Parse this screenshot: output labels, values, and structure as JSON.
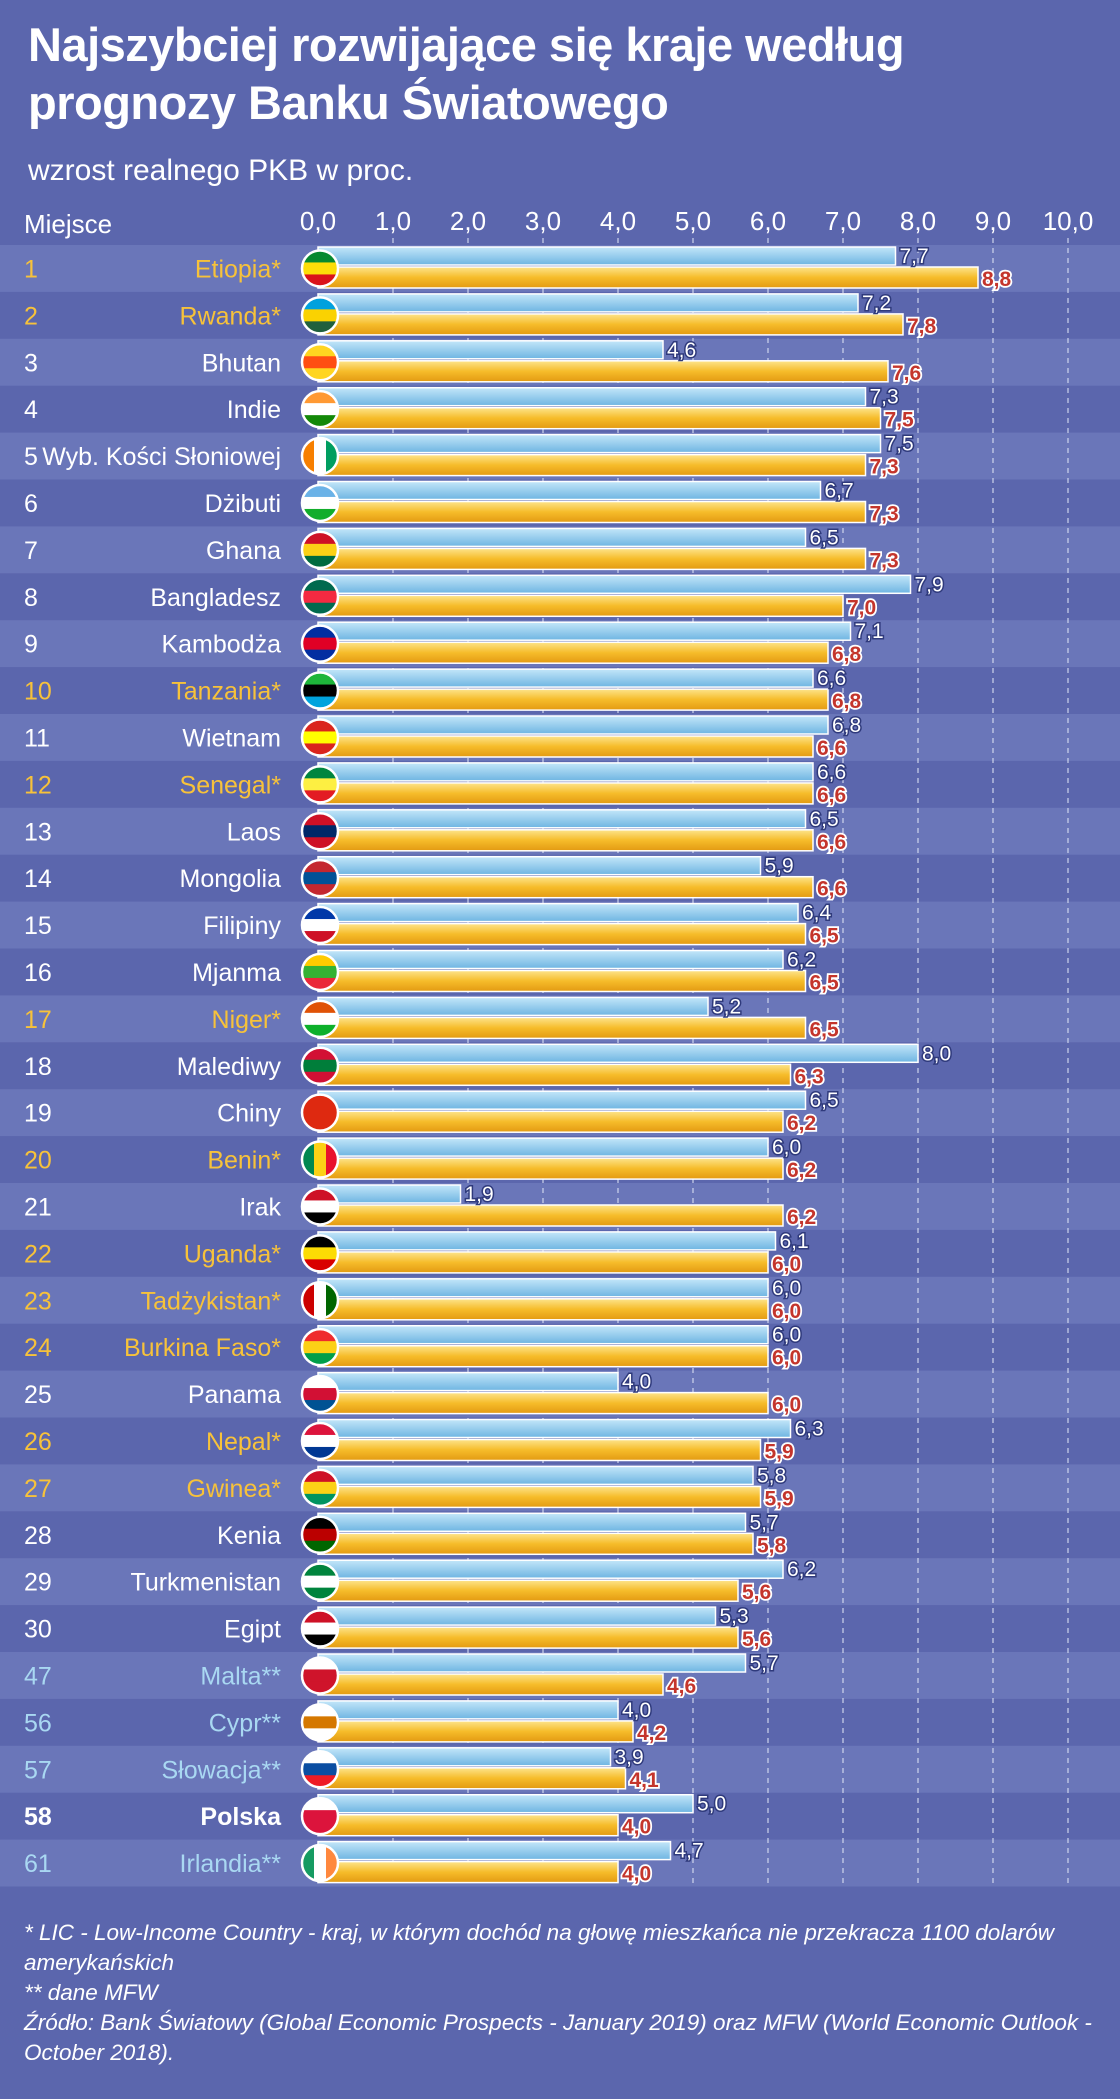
{
  "title": "Najszybciej rozwijające się kraje według prognozy Banku Światowego",
  "subtitle": "wzrost realnego PKB w proc.",
  "rank_header": "Miejsce",
  "colors": {
    "background": "#5b66ad",
    "row_band": "#6a76b9",
    "bar_2018": "#8ec9ec",
    "bar_2019": "#f3b319",
    "label_lic": "#f7c23a",
    "label_eu": "#a9d8f2",
    "label_default": "#ffffff",
    "value_2019_text": "#c4352c"
  },
  "chart_data": {
    "type": "bar",
    "orientation": "horizontal",
    "title": "Najszybciej rozwijające się kraje według prognozy Banku Światowego",
    "subtitle": "wzrost realnego PKB w proc.",
    "xlim": [
      0,
      10
    ],
    "x_ticks": [
      "0,0",
      "1,0",
      "2,0",
      "3,0",
      "4,0",
      "5,0",
      "6,0",
      "7,0",
      "8,0",
      "9,0",
      "10,0"
    ],
    "grid": "vertical dashed",
    "ranks": [
      "1",
      "2",
      "3",
      "4",
      "5",
      "6",
      "7",
      "8",
      "9",
      "10",
      "11",
      "12",
      "13",
      "14",
      "15",
      "16",
      "17",
      "18",
      "19",
      "20",
      "21",
      "22",
      "23",
      "24",
      "25",
      "26",
      "27",
      "28",
      "29",
      "30",
      "47",
      "56",
      "57",
      "58",
      "61"
    ],
    "categories": [
      "Etiopia*",
      "Rwanda*",
      "Bhutan",
      "Indie",
      "Wyb. Kości Słoniowej",
      "Dżibuti",
      "Ghana",
      "Bangladesz",
      "Kambodża",
      "Tanzania*",
      "Wietnam",
      "Senegal*",
      "Laos",
      "Mongolia",
      "Filipiny",
      "Mjanma",
      "Niger*",
      "Malediwy",
      "Chiny",
      "Benin*",
      "Irak",
      "Uganda*",
      "Tadżykistan*",
      "Burkina Faso*",
      "Panama",
      "Nepal*",
      "Gwinea*",
      "Kenia",
      "Turkmenistan",
      "Egipt",
      "Malta**",
      "Cypr**",
      "Słowacja**",
      "Polska",
      "Irlandia**"
    ],
    "groups": [
      "lic",
      "lic",
      "default",
      "default",
      "default",
      "default",
      "default",
      "default",
      "default",
      "lic",
      "default",
      "lic",
      "default",
      "default",
      "default",
      "default",
      "lic",
      "default",
      "default",
      "lic",
      "default",
      "lic",
      "lic",
      "lic",
      "default",
      "lic",
      "lic",
      "default",
      "default",
      "default",
      "eu",
      "eu",
      "eu",
      "poland",
      "eu"
    ],
    "series": [
      {
        "values": [
          7.7,
          7.2,
          4.6,
          7.3,
          7.5,
          6.7,
          6.5,
          7.9,
          7.1,
          6.6,
          6.8,
          6.6,
          6.5,
          5.9,
          6.4,
          6.2,
          5.2,
          8.0,
          6.5,
          6.0,
          1.9,
          6.1,
          6.0,
          6.0,
          4.0,
          6.3,
          5.8,
          5.7,
          6.2,
          5.3,
          5.7,
          4.0,
          3.9,
          5.0,
          4.7
        ],
        "labels": [
          "7,7",
          "7,2",
          "4,6",
          "7,3",
          "7,5",
          "6,7",
          "6,5",
          "7,9",
          "7,1",
          "6,6",
          "6,8",
          "6,6",
          "6,5",
          "5,9",
          "6,4",
          "6,2",
          "5,2",
          "8,0",
          "6,5",
          "6,0",
          "1,9",
          "6,1",
          "6,0",
          "6,0",
          "4,0",
          "6,3",
          "5,8",
          "5,7",
          "6,2",
          "5,3",
          "5,7",
          "4,0",
          "3,9",
          "5,0",
          "4,7"
        ]
      },
      {
        "values": [
          8.8,
          7.8,
          7.6,
          7.5,
          7.3,
          7.3,
          7.3,
          7.0,
          6.8,
          6.8,
          6.6,
          6.6,
          6.6,
          6.6,
          6.5,
          6.5,
          6.5,
          6.3,
          6.2,
          6.2,
          6.2,
          6.0,
          6.0,
          6.0,
          6.0,
          5.9,
          5.9,
          5.8,
          5.6,
          5.6,
          4.6,
          4.2,
          4.1,
          4.0,
          4.0
        ],
        "labels": [
          "8,8",
          "7,8",
          "7,6",
          "7,5",
          "7,3",
          "7,3",
          "7,3",
          "7,0",
          "6,8",
          "6,8",
          "6,6",
          "6,6",
          "6,6",
          "6,6",
          "6,5",
          "6,5",
          "6,5",
          "6,3",
          "6,2",
          "6,2",
          "6,2",
          "6,0",
          "6,0",
          "6,0",
          "6,0",
          "5,9",
          "5,9",
          "5,8",
          "5,6",
          "5,6",
          "4,6",
          "4,2",
          "4,1",
          "4,0",
          "4,0"
        ]
      }
    ]
  },
  "footnotes": {
    "lic": "* LIC - Low-Income Country - kraj, w którym dochód na głowę mieszkańca nie przekracza 1100 dolarów amerykańskich",
    "mfw": "** dane MFW",
    "source": "Źródło: Bank Światowy (Global Economic Prospects - January 2019) oraz MFW (World Economic Outlook - October 2018)."
  }
}
